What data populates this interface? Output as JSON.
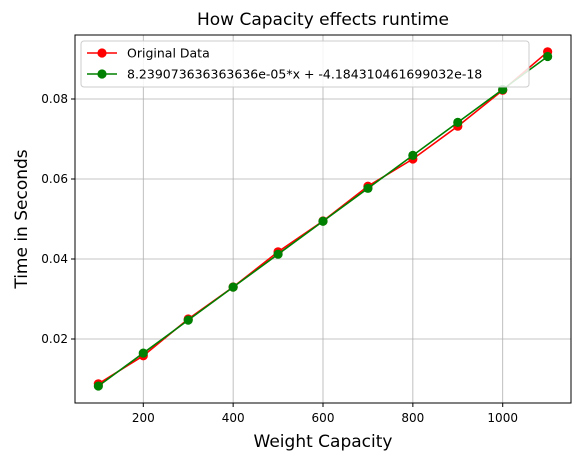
{
  "chart_data": {
    "type": "line",
    "title": "How Capacity effects runtime",
    "xlabel": "Weight Capacity",
    "ylabel": "Time in Seconds",
    "xlim": [
      48,
      1152
    ],
    "ylim": [
      0.004,
      0.096
    ],
    "x_ticks": [
      200,
      400,
      600,
      800,
      1000
    ],
    "y_ticks": [
      0.02,
      0.04,
      0.06,
      0.08
    ],
    "x_tick_labels": [
      "200",
      "400",
      "600",
      "800",
      "1000"
    ],
    "y_tick_labels": [
      "0.02",
      "0.04",
      "0.06",
      "0.08"
    ],
    "grid": true,
    "legend_position": "top-left",
    "x": [
      100,
      200,
      300,
      400,
      500,
      600,
      700,
      800,
      900,
      1000,
      1100
    ],
    "series": [
      {
        "name": "Original Data",
        "color": "#ff0000",
        "values": [
          0.0088,
          0.0158,
          0.025,
          0.033,
          0.0418,
          0.0495,
          0.0582,
          0.065,
          0.0732,
          0.0822,
          0.0918
        ]
      },
      {
        "name": "8.239073636363636e-05*x + -4.184310461699032e-18",
        "color": "#008000",
        "values": [
          0.00824,
          0.01648,
          0.02472,
          0.03296,
          0.0412,
          0.04943,
          0.05767,
          0.06591,
          0.07415,
          0.08239,
          0.09063
        ]
      }
    ]
  }
}
